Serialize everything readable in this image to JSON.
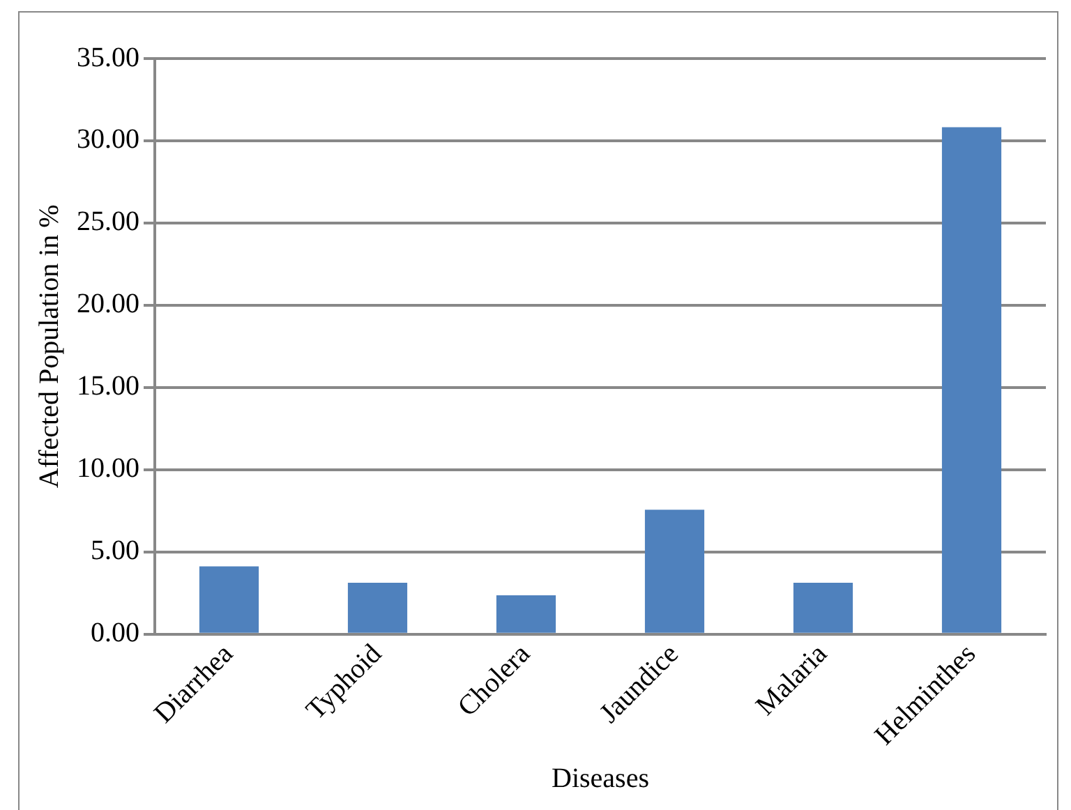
{
  "chart_data": {
    "type": "bar",
    "xlabel": "Diseases",
    "ylabel": "Affected Population in %",
    "categories": [
      "Diarrhea",
      "Typhoid",
      "Cholera",
      "Jaundice",
      "Malaria",
      "Helminthes"
    ],
    "values": [
      4.12,
      3.12,
      2.36,
      7.56,
      3.12,
      30.82
    ],
    "color": "#4f81bd",
    "ylim": [
      0,
      35
    ],
    "yticks": [
      {
        "value": 0,
        "label": "0.00"
      },
      {
        "value": 5,
        "label": "5.00"
      },
      {
        "value": 10,
        "label": "10.00"
      },
      {
        "value": 15,
        "label": "15.00"
      },
      {
        "value": 20,
        "label": "20.00"
      },
      {
        "value": 25,
        "label": "25.00"
      },
      {
        "value": 30,
        "label": "30.00"
      },
      {
        "value": 35,
        "label": "35.00"
      }
    ],
    "grid": "y"
  }
}
